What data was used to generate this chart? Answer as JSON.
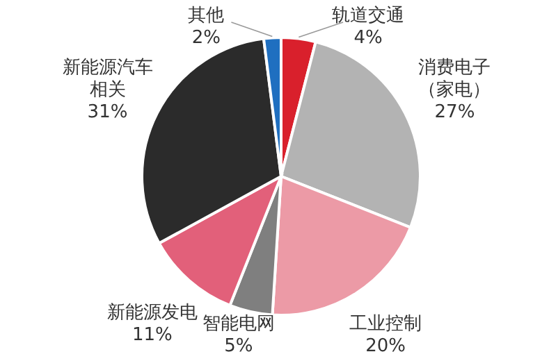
{
  "chart_data": {
    "type": "pie",
    "categories": [
      "轨道交通",
      "消费电子（家电）",
      "工业控制",
      "智能电网",
      "新能源发电",
      "新能源汽车相关",
      "其他"
    ],
    "values": [
      4,
      27,
      20,
      5,
      11,
      31,
      2
    ],
    "value_labels": [
      "4%",
      "27%",
      "20%",
      "5%",
      "11%",
      "31%",
      "2%"
    ],
    "colors": [
      "#d9202c",
      "#b3b3b3",
      "#ec9aa6",
      "#7f7f7f",
      "#e2607a",
      "#2b2b2b",
      "#1f6fc0"
    ]
  }
}
